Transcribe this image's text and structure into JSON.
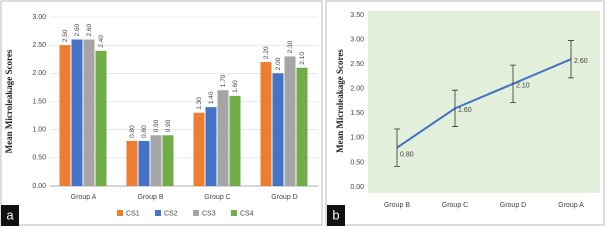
{
  "chart_data": [
    {
      "type": "bar",
      "panel_label": "a",
      "y_label": "Mean Microleakage Scores",
      "categories": [
        "Group A",
        "Group B",
        "Group C",
        "Group D"
      ],
      "series": [
        {
          "name": "CS1",
          "color": "#ed7d31",
          "values": [
            2.5,
            0.8,
            1.3,
            2.2
          ],
          "value_labels": [
            "2.50",
            "0.80",
            "1.30",
            "2.20"
          ]
        },
        {
          "name": "CS2",
          "color": "#4472c4",
          "values": [
            2.6,
            0.8,
            1.4,
            2.0
          ],
          "value_labels": [
            "2.60",
            "0.80",
            "1.40",
            "2.00"
          ]
        },
        {
          "name": "CS3",
          "color": "#a5a5a5",
          "values": [
            2.6,
            0.9,
            1.7,
            2.3
          ],
          "value_labels": [
            "2.60",
            "0.90",
            "1.70",
            "2.30"
          ]
        },
        {
          "name": "CS4",
          "color": "#70ad47",
          "values": [
            2.4,
            0.9,
            1.6,
            2.1
          ],
          "value_labels": [
            "2.40",
            "0.90",
            "1.60",
            "2.10"
          ]
        }
      ],
      "ylim": [
        0,
        3
      ],
      "yticks": [
        {
          "value": 0,
          "label": "0.00"
        },
        {
          "value": 0.5,
          "label": "0.50"
        },
        {
          "value": 1,
          "label": "1.00"
        },
        {
          "value": 1.5,
          "label": "1.50"
        },
        {
          "value": 2,
          "label": "2.00"
        },
        {
          "value": 2.5,
          "label": "2.50"
        },
        {
          "value": 3,
          "label": "3.00"
        }
      ],
      "grid": true,
      "legend": "bottom"
    },
    {
      "type": "line",
      "panel_label": "b",
      "y_label": "Mean Microleakage Scores",
      "categories": [
        "Group B",
        "Group C",
        "Group D",
        "Group A"
      ],
      "values": [
        0.8,
        1.6,
        2.1,
        2.6
      ],
      "value_labels": [
        "0.80",
        "1.60",
        "2.10",
        "2.60"
      ],
      "errors": [
        0.38,
        0.37,
        0.38,
        0.38
      ],
      "color": "#4472c4",
      "background": "#e2efda",
      "ylim": [
        0,
        3.5
      ],
      "yticks": [
        {
          "value": 0,
          "label": "0.00"
        },
        {
          "value": 0.5,
          "label": "0.50"
        },
        {
          "value": 1,
          "label": "1.00"
        },
        {
          "value": 1.5,
          "label": "1.50"
        },
        {
          "value": 2,
          "label": "2.00"
        },
        {
          "value": 2.5,
          "label": "2.50"
        },
        {
          "value": 3,
          "label": "3.00"
        },
        {
          "value": 3.5,
          "label": "3.50"
        }
      ],
      "grid": false
    }
  ]
}
